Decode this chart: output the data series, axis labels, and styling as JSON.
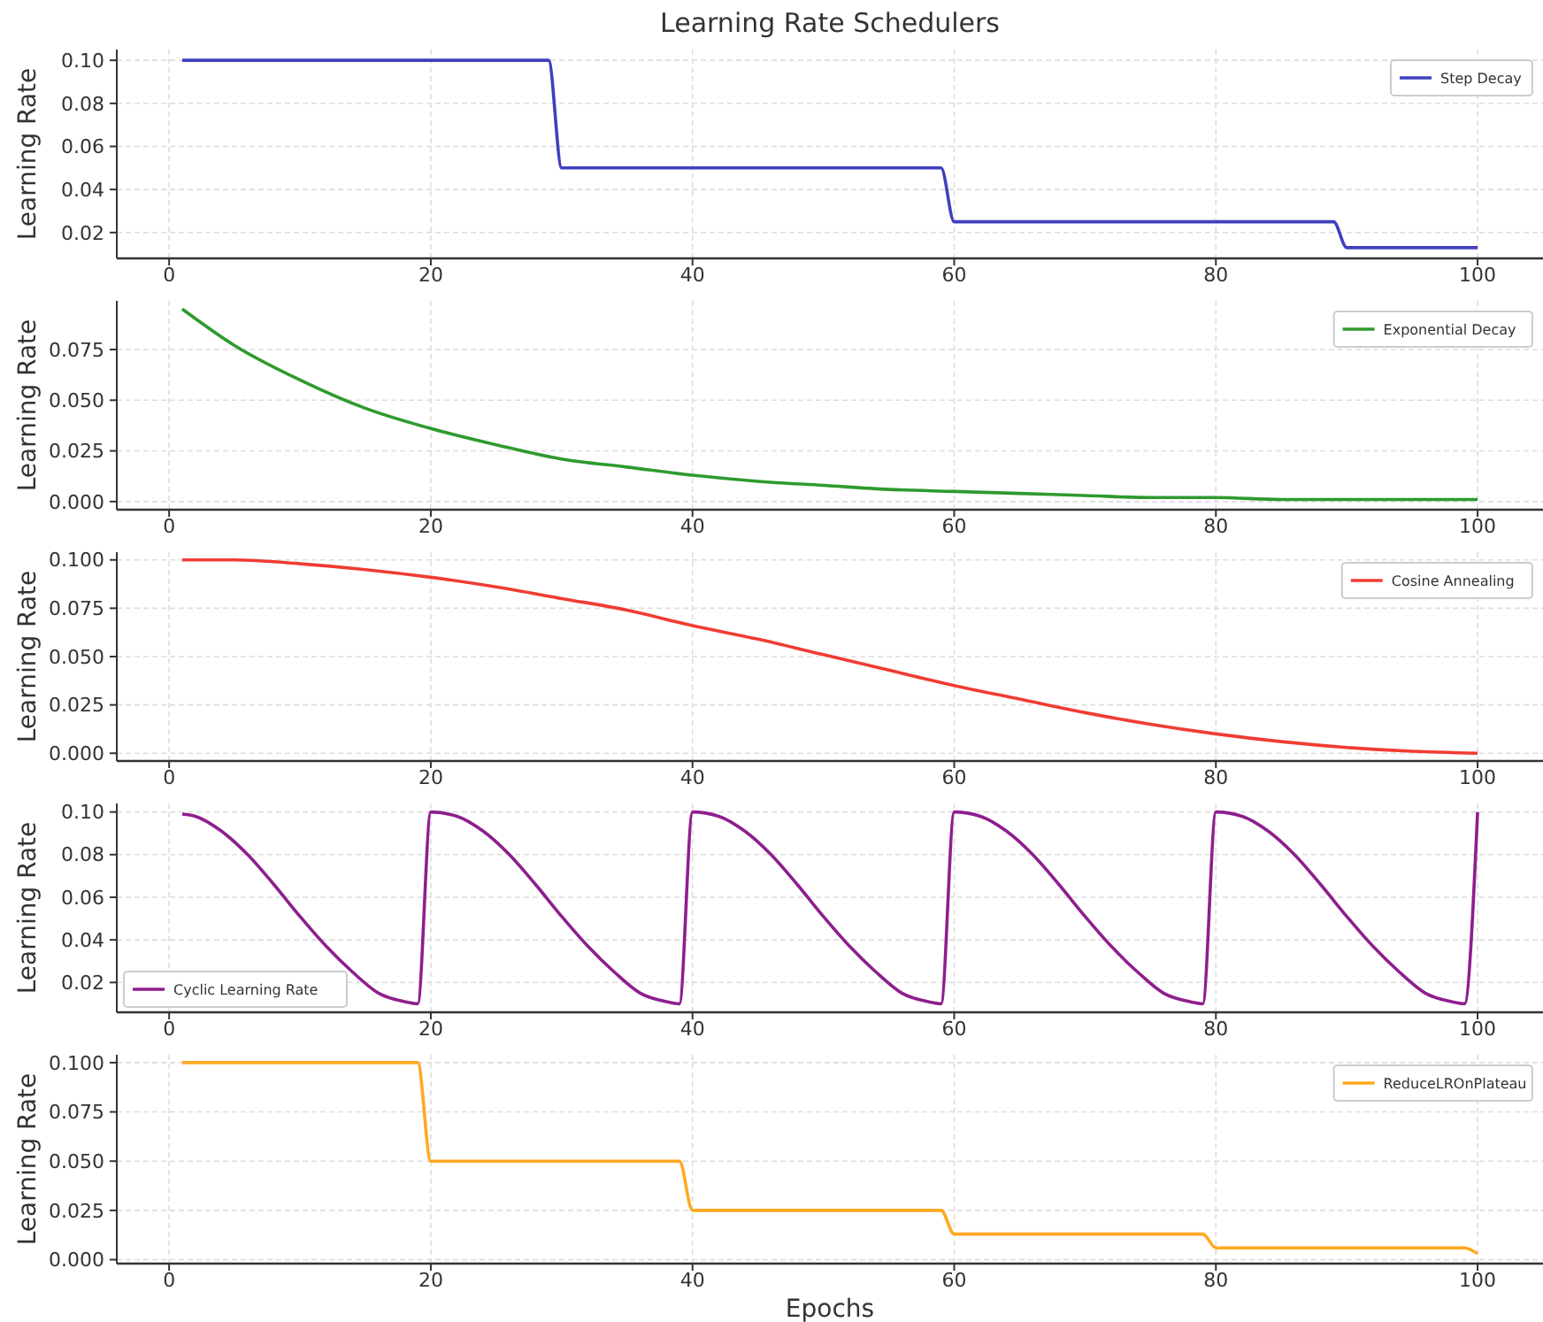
{
  "chart_data": [
    {
      "type": "line",
      "title": "Learning Rate Schedulers",
      "ylabel": "Learning Rate",
      "grid": true,
      "legend": "top right",
      "xlim": [
        -4,
        105
      ],
      "xticks": [
        0,
        20,
        40,
        60,
        80,
        100
      ],
      "ylim": [
        0.008,
        0.105
      ],
      "yticks": [
        {
          "value": 0.02,
          "label": "0.02"
        },
        {
          "value": 0.04,
          "label": "0.04"
        },
        {
          "value": 0.06,
          "label": "0.06"
        },
        {
          "value": 0.08,
          "label": "0.08"
        },
        {
          "value": 0.1,
          "label": "0.10"
        }
      ],
      "x": [
        1,
        29,
        30,
        59,
        60,
        89,
        90,
        100
      ],
      "series": [
        {
          "name": "Step Decay",
          "color": "#3f3fbf",
          "values": [
            0.1,
            0.1,
            0.05,
            0.05,
            0.025,
            0.025,
            0.013,
            0.013
          ]
        }
      ]
    },
    {
      "type": "line",
      "ylabel": "Learning Rate",
      "grid": true,
      "legend": "top right",
      "xlim": [
        -4,
        105
      ],
      "xticks": [
        0,
        20,
        40,
        60,
        80,
        100
      ],
      "ylim": [
        -0.004,
        0.099
      ],
      "yticks": [
        {
          "value": 0,
          "label": "0.000"
        },
        {
          "value": 0.025,
          "label": "0.025"
        },
        {
          "value": 0.05,
          "label": "0.050"
        },
        {
          "value": 0.075,
          "label": "0.075"
        }
      ],
      "x": [
        1,
        5,
        10,
        15,
        20,
        25,
        30,
        35,
        40,
        45,
        50,
        55,
        60,
        65,
        70,
        75,
        80,
        85,
        90,
        95,
        100
      ],
      "series": [
        {
          "name": "Exponential Decay",
          "color": "#2e9a2e",
          "values": [
            0.095,
            0.077,
            0.06,
            0.046,
            0.036,
            0.028,
            0.021,
            0.017,
            0.013,
            0.01,
            0.008,
            0.006,
            0.005,
            0.004,
            0.003,
            0.002,
            0.002,
            0.001,
            0.001,
            0.001,
            0.001
          ]
        }
      ]
    },
    {
      "type": "line",
      "ylabel": "Learning Rate",
      "grid": true,
      "legend": "top right",
      "xlim": [
        -4,
        105
      ],
      "xticks": [
        0,
        20,
        40,
        60,
        80,
        100
      ],
      "ylim": [
        -0.004,
        0.104
      ],
      "yticks": [
        {
          "value": 0,
          "label": "0.000"
        },
        {
          "value": 0.025,
          "label": "0.025"
        },
        {
          "value": 0.05,
          "label": "0.050"
        },
        {
          "value": 0.075,
          "label": "0.075"
        },
        {
          "value": 0.1,
          "label": "0.100"
        }
      ],
      "x": [
        1,
        5,
        10,
        15,
        20,
        25,
        30,
        35,
        40,
        45,
        50,
        55,
        60,
        65,
        70,
        75,
        80,
        85,
        90,
        95,
        100
      ],
      "series": [
        {
          "name": "Cosine Annealing",
          "color": "#f03c32",
          "values": [
            0.1,
            0.1,
            0.098,
            0.095,
            0.091,
            0.086,
            0.08,
            0.074,
            0.066,
            0.059,
            0.051,
            0.043,
            0.035,
            0.028,
            0.021,
            0.015,
            0.01,
            0.006,
            0.003,
            0.001,
            0
          ]
        }
      ]
    },
    {
      "type": "line",
      "ylabel": "Learning Rate",
      "grid": true,
      "legend": "bottom left",
      "xlim": [
        -4,
        105
      ],
      "xticks": [
        0,
        20,
        40,
        60,
        80,
        100
      ],
      "ylim": [
        0.006,
        0.104
      ],
      "yticks": [
        {
          "value": 0.02,
          "label": "0.02"
        },
        {
          "value": 0.04,
          "label": "0.04"
        },
        {
          "value": 0.06,
          "label": "0.06"
        },
        {
          "value": 0.08,
          "label": "0.08"
        },
        {
          "value": 0.1,
          "label": "0.10"
        }
      ],
      "x": [
        1,
        2,
        4,
        6,
        8,
        10,
        12,
        14,
        16,
        18,
        19,
        20,
        22,
        24,
        26,
        28,
        30,
        32,
        34,
        36,
        38,
        39,
        40,
        42,
        44,
        46,
        48,
        50,
        52,
        54,
        56,
        58,
        59,
        60,
        62,
        64,
        66,
        68,
        70,
        72,
        74,
        76,
        78,
        79,
        80,
        82,
        84,
        86,
        88,
        90,
        92,
        94,
        96,
        98,
        99,
        100
      ],
      "series": [
        {
          "name": "Cyclic Learning Rate",
          "color": "#8e1e8e",
          "values": [
            0.099,
            0.098,
            0.091,
            0.08,
            0.066,
            0.051,
            0.037,
            0.025,
            0.015,
            0.011,
            0.01,
            0.1,
            0.098,
            0.091,
            0.08,
            0.066,
            0.051,
            0.037,
            0.025,
            0.015,
            0.011,
            0.01,
            0.1,
            0.098,
            0.091,
            0.08,
            0.066,
            0.051,
            0.037,
            0.025,
            0.015,
            0.011,
            0.01,
            0.1,
            0.098,
            0.091,
            0.08,
            0.066,
            0.051,
            0.037,
            0.025,
            0.015,
            0.011,
            0.01,
            0.1,
            0.098,
            0.091,
            0.08,
            0.066,
            0.051,
            0.037,
            0.025,
            0.015,
            0.011,
            0.01,
            0.1
          ]
        }
      ]
    },
    {
      "type": "line",
      "ylabel": "Learning Rate",
      "xlabel": "Epochs",
      "grid": true,
      "legend": "top right",
      "xlim": [
        -4,
        105
      ],
      "xticks": [
        0,
        20,
        40,
        60,
        80,
        100
      ],
      "ylim": [
        -0.002,
        0.104
      ],
      "yticks": [
        {
          "value": 0,
          "label": "0.000"
        },
        {
          "value": 0.025,
          "label": "0.025"
        },
        {
          "value": 0.05,
          "label": "0.050"
        },
        {
          "value": 0.075,
          "label": "0.075"
        },
        {
          "value": 0.1,
          "label": "0.100"
        }
      ],
      "x": [
        1,
        19,
        20,
        39,
        40,
        59,
        60,
        79,
        80,
        99,
        100
      ],
      "series": [
        {
          "name": "ReduceLROnPlateau",
          "color": "#ffa820",
          "values": [
            0.1,
            0.1,
            0.05,
            0.05,
            0.025,
            0.025,
            0.013,
            0.013,
            0.006,
            0.006,
            0.003
          ]
        }
      ]
    }
  ]
}
